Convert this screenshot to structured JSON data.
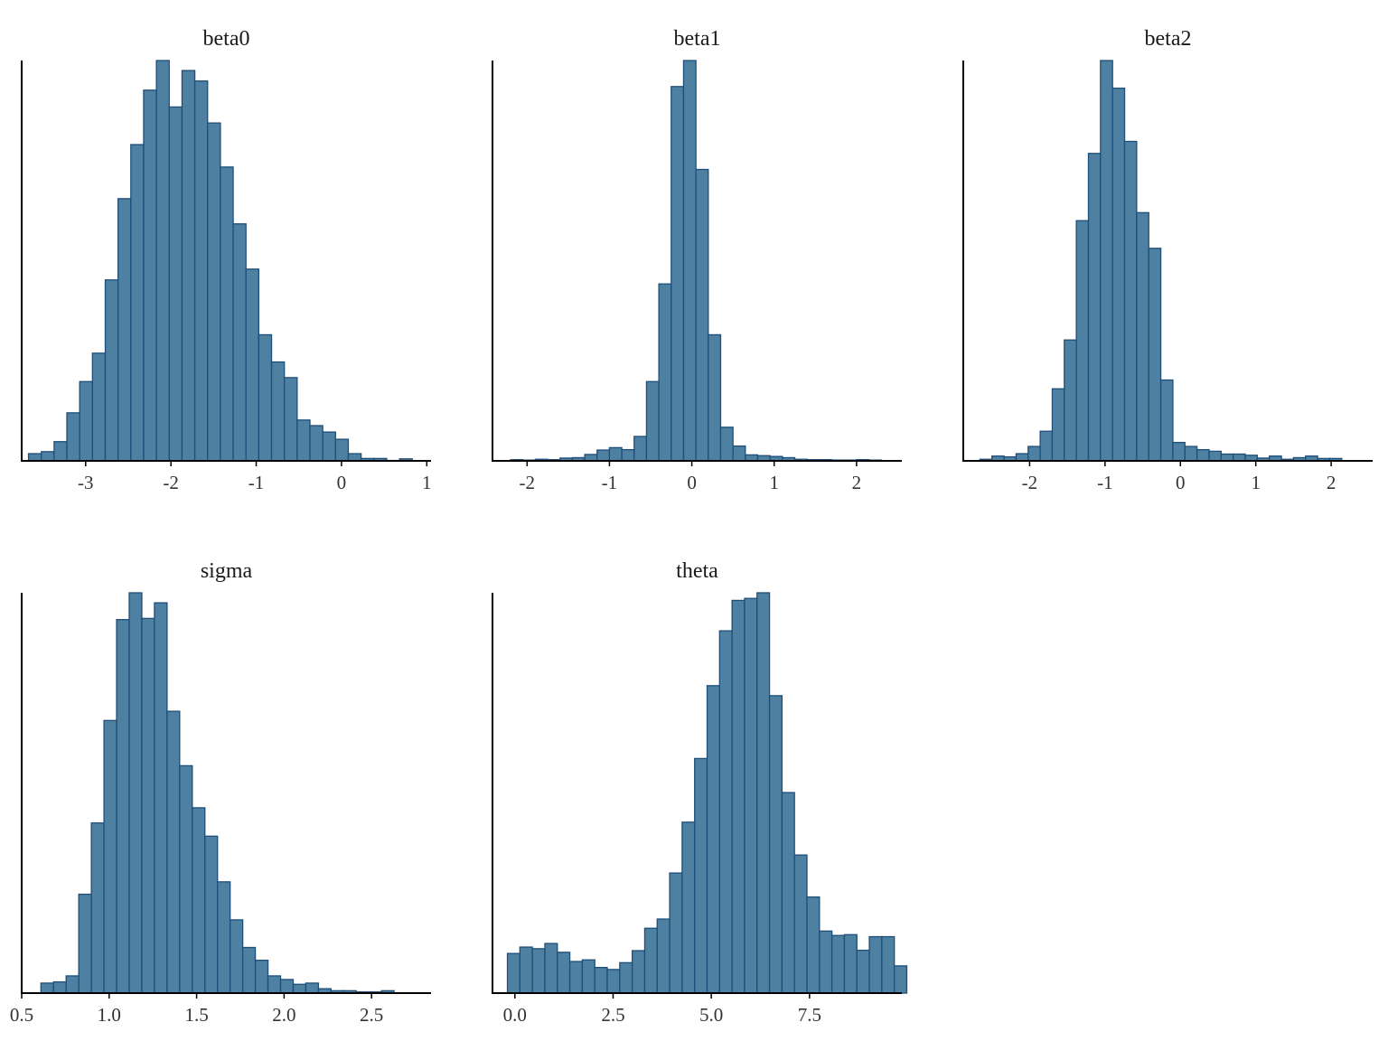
{
  "figure": {
    "type": "histogram-grid",
    "bar_fill": "#4e80a2",
    "bar_stroke": "#1f4e79"
  },
  "chart_data": [
    {
      "type": "bar",
      "title": "beta0",
      "xlabel": "",
      "ylabel": "",
      "xlim": [
        -3.75,
        1.05
      ],
      "ylim": [
        0,
        100
      ],
      "xticks": [
        {
          "value": -3,
          "label": "-3"
        },
        {
          "value": -2,
          "label": "-2"
        },
        {
          "value": -1,
          "label": "-1"
        },
        {
          "value": 0,
          "label": "0"
        },
        {
          "value": 1,
          "label": "1"
        }
      ],
      "bin_start": -3.67,
      "bin_width": 0.15,
      "counts": [
        1.8,
        2.3,
        4.8,
        12,
        19.8,
        26.9,
        45.2,
        65.5,
        79,
        92.6,
        100,
        88.4,
        97.5,
        94.9,
        84.4,
        73.4,
        59.2,
        47.9,
        31.5,
        24.7,
        20.8,
        10.2,
        8.8,
        7.2,
        5.4,
        1.8,
        0.6,
        0.6,
        0.1,
        0.5
      ]
    },
    {
      "type": "bar",
      "title": "beta1",
      "xlabel": "",
      "ylabel": "",
      "xlim": [
        -2.42,
        2.55
      ],
      "ylim": [
        0,
        100
      ],
      "xticks": [
        {
          "value": -2,
          "label": "-2"
        },
        {
          "value": -1,
          "label": "-1"
        },
        {
          "value": 0,
          "label": "0"
        },
        {
          "value": 1,
          "label": "1"
        },
        {
          "value": 2,
          "label": "2"
        }
      ],
      "bin_start": -2.2,
      "bin_width": 0.15,
      "counts": [
        0.3,
        0.2,
        0.4,
        0.3,
        0.7,
        0.8,
        1.6,
        2.7,
        3.3,
        2.8,
        6.1,
        19.8,
        44.2,
        93.5,
        100,
        72.8,
        31.5,
        8.4,
        3.7,
        1.5,
        1.3,
        1.1,
        0.8,
        0.4,
        0.3,
        0.3,
        0.2,
        0.2,
        0.3,
        0.2
      ]
    },
    {
      "type": "bar",
      "title": "beta2",
      "xlabel": "",
      "ylabel": "",
      "xlim": [
        -2.88,
        2.55
      ],
      "ylim": [
        0,
        100
      ],
      "xticks": [
        {
          "value": -2,
          "label": "-2"
        },
        {
          "value": -1,
          "label": "-1"
        },
        {
          "value": 0,
          "label": "0"
        },
        {
          "value": 1,
          "label": "1"
        },
        {
          "value": 2,
          "label": "2"
        }
      ],
      "bin_start": -2.66,
      "bin_width": 0.16,
      "counts": [
        0.4,
        1.2,
        1,
        1.8,
        3.6,
        7.4,
        18,
        30.2,
        60,
        76.8,
        100,
        93.1,
        79.8,
        62,
        53.1,
        20.2,
        4.6,
        3.6,
        2.8,
        2.4,
        1.7,
        1.7,
        1.4,
        0.7,
        1.2,
        0.4,
        0.8,
        1.2,
        0.6,
        0.6
      ]
    },
    {
      "type": "bar",
      "title": "sigma",
      "xlabel": "",
      "ylabel": "",
      "xlim": [
        0.5,
        2.84
      ],
      "ylim": [
        0,
        100
      ],
      "xticks": [
        {
          "value": 0.5,
          "label": "0.5"
        },
        {
          "value": 1.0,
          "label": "1.0"
        },
        {
          "value": 1.5,
          "label": "1.5"
        },
        {
          "value": 2.0,
          "label": "2.0"
        },
        {
          "value": 2.5,
          "label": "2.5"
        }
      ],
      "bin_start": 0.61,
      "bin_width": 0.0721,
      "counts": [
        2.5,
        2.8,
        4.3,
        24.7,
        42.5,
        68.1,
        93.3,
        100,
        93.6,
        97.5,
        70.4,
        56.8,
        46.3,
        39.2,
        27.8,
        18.3,
        11.4,
        8.2,
        4.3,
        3.4,
        2.2,
        2.5,
        1.1,
        0.6,
        0.6,
        0.3,
        0.3,
        0.6
      ]
    },
    {
      "type": "bar",
      "title": "theta",
      "xlabel": "",
      "ylabel": "",
      "xlim": [
        -0.57,
        9.85
      ],
      "ylim": [
        0,
        100
      ],
      "xticks": [
        {
          "value": 0.0,
          "label": "0.0"
        },
        {
          "value": 2.5,
          "label": "2.5"
        },
        {
          "value": 5.0,
          "label": "5.0"
        },
        {
          "value": 7.5,
          "label": "7.5"
        }
      ],
      "bin_start": -0.19,
      "bin_width": 0.3177,
      "counts": [
        9.9,
        11.5,
        11.1,
        12.4,
        10.2,
        7.9,
        8.3,
        6.4,
        5.9,
        7.6,
        10.6,
        16.2,
        18.5,
        30,
        42.7,
        58.6,
        76.8,
        90.5,
        98.1,
        98.6,
        100,
        74.3,
        50.1,
        34.5,
        24,
        15.5,
        14.4,
        14.6,
        10.7,
        14.1,
        14.1,
        6.8
      ]
    }
  ]
}
